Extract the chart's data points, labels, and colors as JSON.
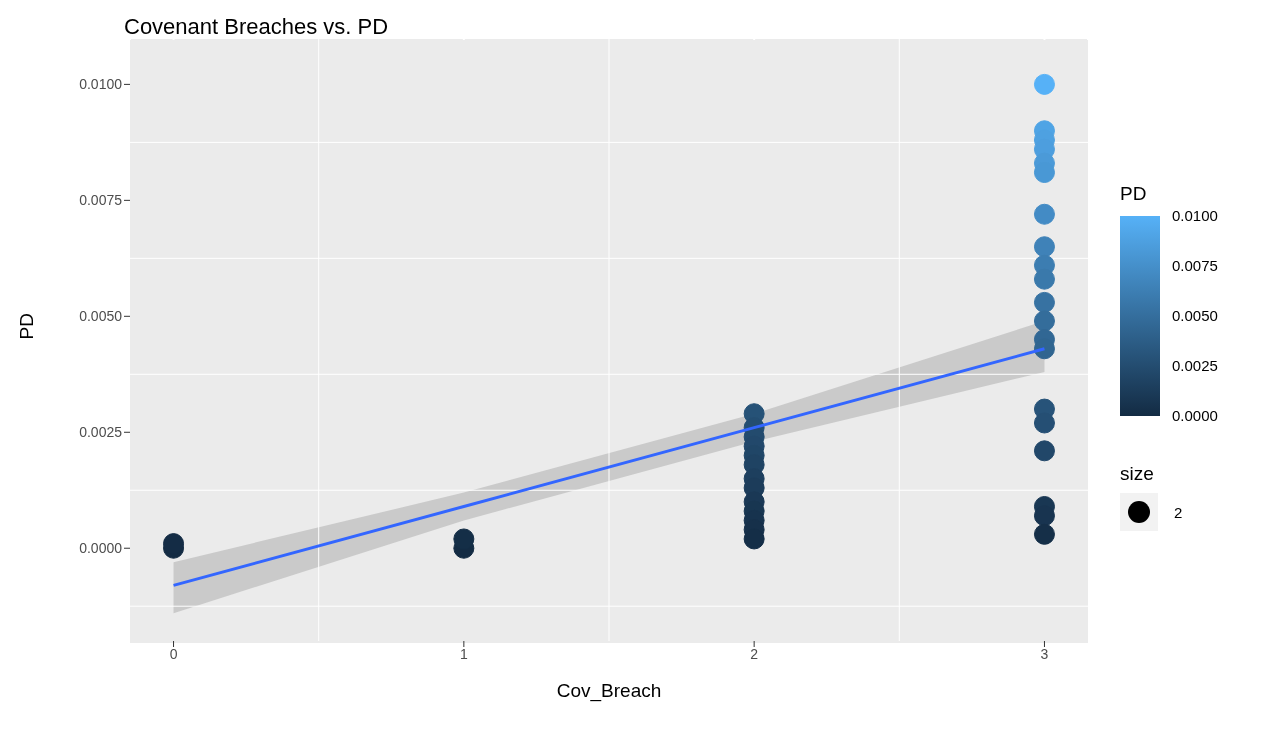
{
  "chart_data": {
    "type": "scatter",
    "title": "Covenant Breaches vs. PD",
    "xlabel": "Cov_Breach",
    "ylabel": "PD",
    "clabel": "PD",
    "legend_title": "size",
    "xlim": [
      -0.15,
      3.15
    ],
    "xticks": [
      0,
      1,
      2,
      3
    ],
    "ylim": [
      -0.002,
      0.011
    ],
    "yticks": [
      {
        "value": 0,
        "label": "0.0000"
      },
      {
        "value": 0.0025,
        "label": "0.0025"
      },
      {
        "value": 0.005,
        "label": "0.0050"
      },
      {
        "value": 0.0075,
        "label": "0.0075"
      },
      {
        "value": 0.01,
        "label": "0.0100"
      }
    ],
    "clim": [
      0,
      0.01
    ],
    "cticks": [
      {
        "value": 0,
        "label": "0.0000"
      },
      {
        "value": 0.0025,
        "label": "0.0025"
      },
      {
        "value": 0.005,
        "label": "0.0050"
      },
      {
        "value": 0.0075,
        "label": "0.0075"
      },
      {
        "value": 0.01,
        "label": "0.0100"
      }
    ],
    "grid": true,
    "legend": "right",
    "series": [
      {
        "name": "2",
        "marker": "circle",
        "colors": [
          "#132b43",
          "#142c45",
          "#132b43",
          "#142e47",
          "#265277",
          "#244e72",
          "#234b6e",
          "#22486b",
          "#204667",
          "#1f4363",
          "#1d3f5e",
          "#1c3c5a",
          "#1a3855",
          "#183651",
          "#17334e",
          "#16304a",
          "#142e47",
          "#56b1f7",
          "#4fa4e5",
          "#4ea1e1",
          "#4d9ede",
          "#4b9ad8",
          "#4998d5",
          "#438bc5",
          "#3f82b8",
          "#3c7db1",
          "#3a79ab",
          "#3772a2",
          "#346d9b",
          "#316794",
          "#306590",
          "#275379",
          "#254f74",
          "#214769",
          "#193753",
          "#183450",
          "#152f48"
        ],
        "x": [
          0,
          0,
          1,
          1,
          2,
          2,
          2,
          2,
          2,
          2,
          2,
          2,
          2,
          2,
          2,
          2,
          2,
          3,
          3,
          3,
          3,
          3,
          3,
          3,
          3,
          3,
          3,
          3,
          3,
          3,
          3,
          3,
          3,
          3,
          3,
          3,
          3
        ],
        "values": [
          0.0,
          0.0001,
          0.0,
          0.0002,
          0.0029,
          0.0026,
          0.0024,
          0.0022,
          0.002,
          0.0018,
          0.0015,
          0.0013,
          0.001,
          0.0008,
          0.0006,
          0.0004,
          0.0002,
          0.01,
          0.009,
          0.0088,
          0.0086,
          0.0083,
          0.0081,
          0.0072,
          0.0065,
          0.0061,
          0.0058,
          0.0053,
          0.0049,
          0.0045,
          0.0043,
          0.003,
          0.0027,
          0.0021,
          0.0009,
          0.0007,
          0.0003
        ],
        "cvalues": [
          0.0,
          0.0001,
          0.0,
          0.0002,
          0.0029,
          0.0026,
          0.0024,
          0.0022,
          0.002,
          0.0018,
          0.0015,
          0.0013,
          0.001,
          0.0008,
          0.0006,
          0.0004,
          0.0002,
          0.01,
          0.009,
          0.0088,
          0.0086,
          0.0083,
          0.0081,
          0.0072,
          0.0065,
          0.0061,
          0.0058,
          0.0053,
          0.0049,
          0.0045,
          0.0043,
          0.003,
          0.0027,
          0.0021,
          0.0009,
          0.0007,
          0.0003
        ]
      },
      {
        "type": "line",
        "color": "#3366ff",
        "x": [
          0,
          1,
          2,
          3
        ],
        "values": [
          -0.0008,
          0.0009,
          0.0026,
          0.0043
        ],
        "lower": [
          -0.0014,
          0.0006,
          0.0023,
          0.0038
        ],
        "upper": [
          -0.0003,
          0.0012,
          0.0029,
          0.0049
        ]
      }
    ]
  }
}
